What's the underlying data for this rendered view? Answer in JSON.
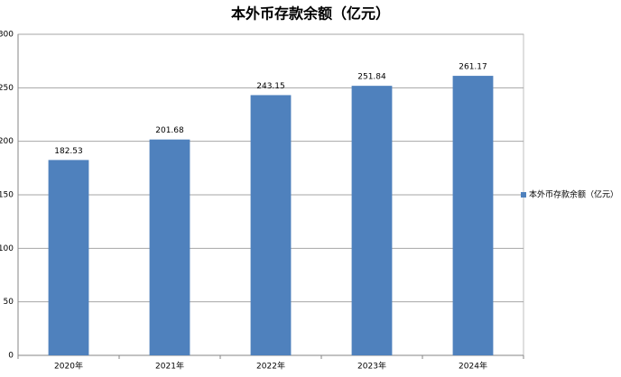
{
  "chart_data": {
    "type": "bar",
    "title": "本外币存款余额（亿元）",
    "categories": [
      "2020年",
      "2021年",
      "2022年",
      "2023年",
      "2024年"
    ],
    "series": [
      {
        "name": "本外币存款余额（亿元）",
        "color": "#4f81bd",
        "values": [
          182.53,
          201.68,
          243.15,
          251.84,
          261.17
        ]
      }
    ],
    "ylim": [
      0,
      300
    ],
    "yticks": [
      0,
      50,
      100,
      150,
      200,
      250,
      300
    ],
    "grid": true,
    "legend": "right"
  }
}
